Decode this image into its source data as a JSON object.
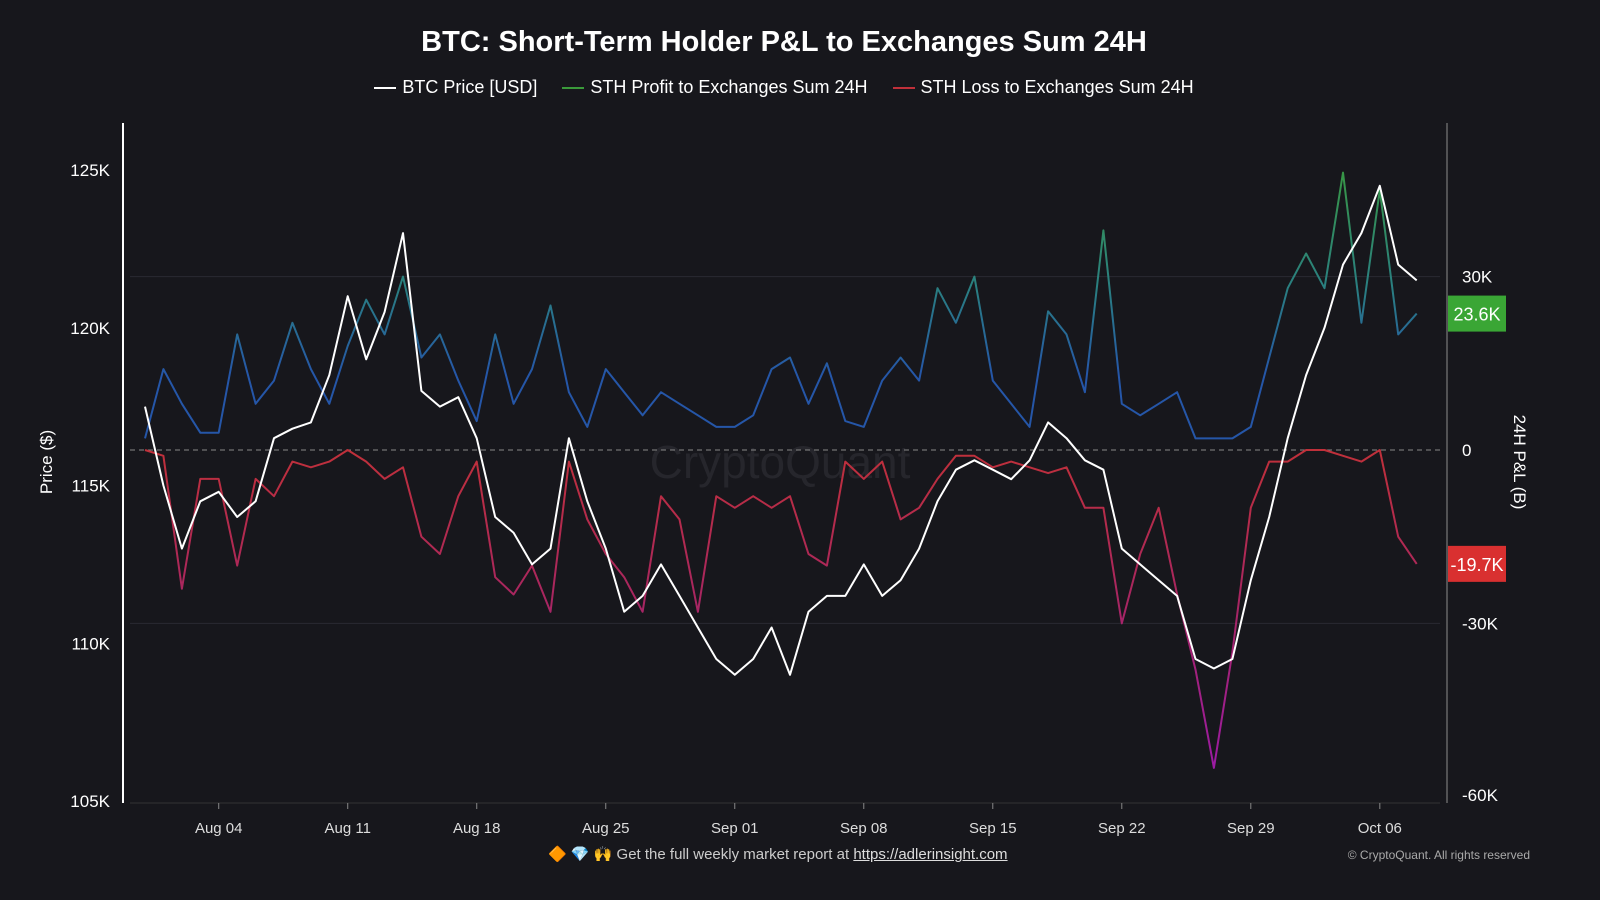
{
  "chart_data": {
    "type": "line",
    "title": "BTC: Short-Term Holder P&L to Exchanges Sum 24H",
    "ylabel": "Price ($)",
    "y2label": "24H P&L (B)",
    "ylim": [
      105000,
      126000
    ],
    "y2lim": [
      -60000,
      42000
    ],
    "yticks": [
      "105K",
      "110K",
      "115K",
      "120K",
      "125K"
    ],
    "y2ticks": [
      "-60K",
      "-30K",
      "0",
      "30K"
    ],
    "xticks": [
      "Aug 04",
      "Aug 11",
      "Aug 18",
      "Aug 25",
      "Sep 01",
      "Sep 08",
      "Sep 15",
      "Sep 22",
      "Sep 29",
      "Oct 06"
    ],
    "x_start": "2025-07-31",
    "x_end": "2025-10-08",
    "legend_position": "top",
    "last_value_badges": [
      {
        "label": "23.6K",
        "color": "#3aa635"
      },
      {
        "label": "-19.7K",
        "color": "#d93030"
      }
    ],
    "series": [
      {
        "name": "BTC Price [USD]",
        "color": "#ffffff",
        "axis": "left",
        "unit": "K USD",
        "values": [
          117.5,
          115,
          113,
          114.5,
          114.8,
          114,
          114.5,
          116.5,
          116.8,
          117,
          118.5,
          121,
          119,
          120.5,
          123,
          118,
          117.5,
          117.8,
          116.5,
          114,
          113.5,
          112.5,
          113,
          116.5,
          114.5,
          113,
          111,
          111.5,
          112.5,
          111.5,
          110.5,
          109.5,
          109,
          109.5,
          110.5,
          109,
          111,
          111.5,
          111.5,
          112.5,
          111.5,
          112,
          113,
          114.5,
          115.5,
          115.8,
          115.5,
          115.2,
          115.8,
          117,
          116.5,
          115.8,
          115.5,
          113,
          112.5,
          112,
          111.5,
          109.5,
          109.2,
          109.5,
          112,
          114,
          116.5,
          118.5,
          120,
          122,
          123,
          124.5,
          122,
          121.5
        ]
      },
      {
        "name": "STH Profit to Exchanges Sum 24H",
        "color": "#3a9a3a",
        "color_low": "#2556a8",
        "axis": "right",
        "unit": "K",
        "values": [
          2,
          14,
          8,
          3,
          3,
          20,
          8,
          12,
          22,
          14,
          8,
          18,
          26,
          20,
          30,
          16,
          20,
          12,
          5,
          20,
          8,
          14,
          25,
          10,
          4,
          14,
          10,
          6,
          10,
          8,
          6,
          4,
          4,
          6,
          14,
          16,
          8,
          15,
          5,
          4,
          12,
          16,
          12,
          28,
          22,
          30,
          12,
          8,
          4,
          24,
          20,
          10,
          38,
          8,
          6,
          8,
          10,
          2,
          2,
          2,
          4,
          16,
          28,
          34,
          28,
          48,
          22,
          45,
          20,
          23.6
        ]
      },
      {
        "name": "STH Loss to Exchanges Sum 24H",
        "color": "#c0303a",
        "color_low": "#a020a0",
        "axis": "right",
        "unit": "K",
        "values": [
          0,
          -1,
          -24,
          -5,
          -5,
          -20,
          -5,
          -8,
          -2,
          -3,
          -2,
          0,
          -2,
          -5,
          -3,
          -15,
          -18,
          -8,
          -2,
          -22,
          -25,
          -20,
          -28,
          -2,
          -12,
          -18,
          -22,
          -28,
          -8,
          -12,
          -28,
          -8,
          -10,
          -8,
          -10,
          -8,
          -18,
          -20,
          -2,
          -5,
          -2,
          -12,
          -10,
          -5,
          -1,
          -1,
          -3,
          -2,
          -3,
          -4,
          -3,
          -10,
          -10,
          -30,
          -18,
          -10,
          -25,
          -38,
          -55,
          -35,
          -10,
          -2,
          -2,
          0,
          0,
          -1,
          -2,
          0,
          -15,
          -19.7
        ]
      }
    ]
  },
  "watermark": "CryptoQuant",
  "footer": {
    "emoji": "🔶 💎 🙌",
    "text": "Get the full weekly market report at ",
    "link": "https://adlerinsight.com"
  },
  "copyright": "© CryptoQuant. All rights reserved"
}
